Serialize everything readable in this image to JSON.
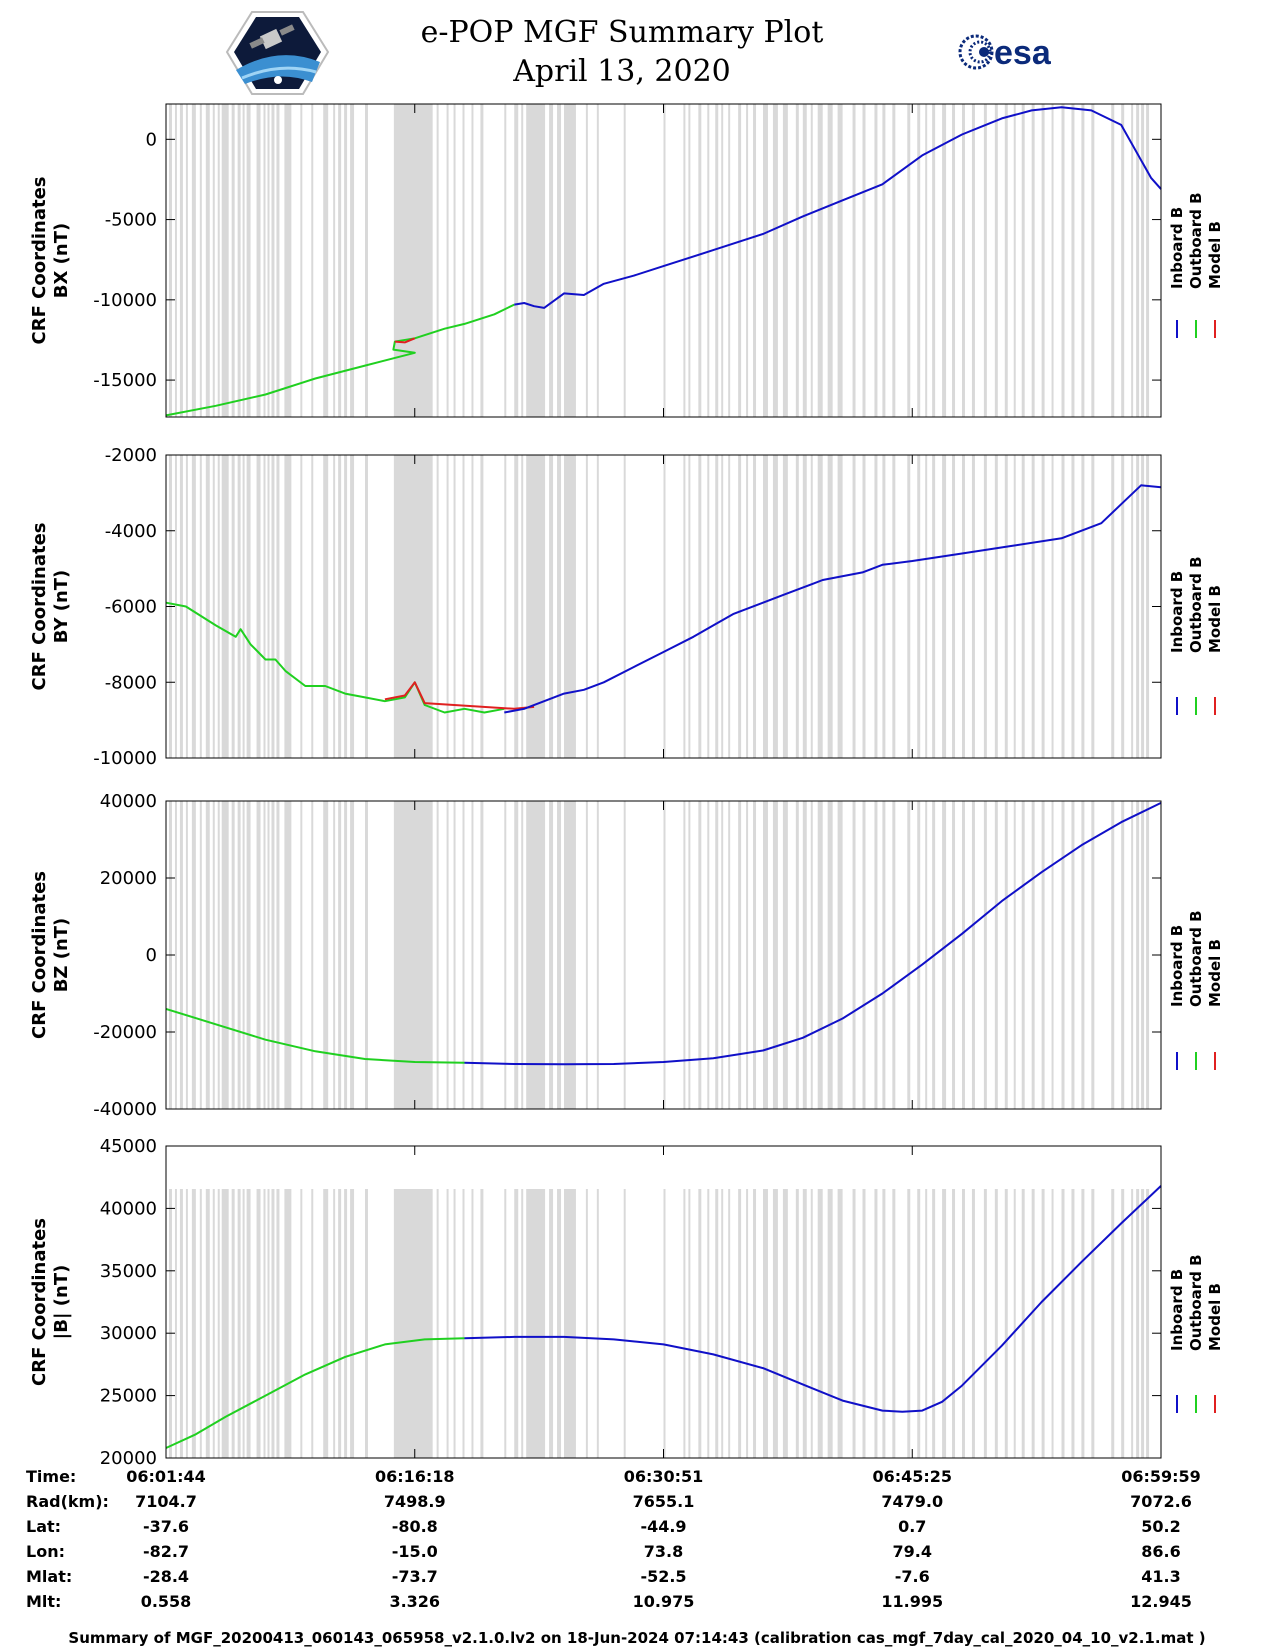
{
  "header": {
    "title_line1": "e-POP MGF Summary Plot",
    "title_line2": "April 13, 2020",
    "esa_logo_text": "esa"
  },
  "colors": {
    "inboard": "#1010c8",
    "outboard": "#20d020",
    "model": "#e02020",
    "shading": "#d9d9d9",
    "esa_blue": "#0b2a7a"
  },
  "chart_data": [
    {
      "type": "line",
      "id": "bx",
      "ylabel_line1": "CRF Coordinates",
      "ylabel_line2": "BX (nT)",
      "ylim": [
        -17300,
        2200
      ],
      "yticks": [
        0,
        -5000,
        -10000,
        -15000
      ],
      "legend": [
        "Inboard B",
        "Outboard B",
        "Model B"
      ],
      "series": [
        {
          "name": "Outboard B",
          "color_key": "outboard",
          "x": [
            0.0,
            0.05,
            0.1,
            0.15,
            0.2,
            0.25,
            0.2285,
            0.23,
            0.25,
            0.28,
            0.3,
            0.33,
            0.35
          ],
          "y": [
            -17200,
            -16600,
            -15900,
            -14900,
            -14100,
            -13300,
            -13100,
            -12600,
            -12400,
            -11800,
            -11500,
            -10900,
            -10300
          ]
        },
        {
          "name": "Model B",
          "color_key": "model",
          "x": [
            0.23,
            0.24,
            0.25
          ],
          "y": [
            -12600,
            -12650,
            -12400
          ]
        },
        {
          "name": "Inboard B",
          "color_key": "inboard",
          "x": [
            0.35,
            0.36,
            0.37,
            0.38,
            0.4,
            0.42,
            0.44,
            0.47,
            0.5,
            0.55,
            0.6,
            0.64,
            0.68,
            0.72,
            0.76,
            0.8,
            0.84,
            0.87,
            0.9,
            0.93,
            0.96,
            0.99,
            1.0
          ],
          "y": [
            -10300,
            -10200,
            -10400,
            -10500,
            -9600,
            -9700,
            -9000,
            -8500,
            -7900,
            -6900,
            -5900,
            -4800,
            -3800,
            -2800,
            -1000,
            300,
            1300,
            1800,
            2000,
            1800,
            900,
            -2400,
            -3100
          ]
        }
      ]
    },
    {
      "type": "line",
      "id": "by",
      "ylabel_line1": "CRF Coordinates",
      "ylabel_line2": "BY (nT)",
      "ylim": [
        -10000,
        -2000
      ],
      "yticks": [
        -2000,
        -4000,
        -6000,
        -8000,
        -10000
      ],
      "legend": [
        "Inboard B",
        "Outboard B",
        "Model B"
      ],
      "series": [
        {
          "name": "Outboard B",
          "color_key": "outboard",
          "x": [
            0.0,
            0.02,
            0.05,
            0.07,
            0.075,
            0.085,
            0.1,
            0.11,
            0.12,
            0.14,
            0.16,
            0.18,
            0.2,
            0.22,
            0.24,
            0.25,
            0.26,
            0.28,
            0.3,
            0.32,
            0.34
          ],
          "y": [
            -5900,
            -6000,
            -6500,
            -6800,
            -6600,
            -7000,
            -7400,
            -7400,
            -7700,
            -8100,
            -8100,
            -8300,
            -8400,
            -8500,
            -8400,
            -8000,
            -8600,
            -8800,
            -8700,
            -8800,
            -8700
          ]
        },
        {
          "name": "Model B",
          "color_key": "model",
          "x": [
            0.22,
            0.24,
            0.25,
            0.26,
            0.35,
            0.37
          ],
          "y": [
            -8450,
            -8350,
            -8000,
            -8550,
            -8700,
            -8650
          ]
        },
        {
          "name": "Inboard B",
          "color_key": "inboard",
          "x": [
            0.34,
            0.36,
            0.38,
            0.4,
            0.42,
            0.44,
            0.47,
            0.5,
            0.53,
            0.55,
            0.57,
            0.6,
            0.62,
            0.64,
            0.65,
            0.66,
            0.7,
            0.72,
            0.75,
            0.8,
            0.85,
            0.9,
            0.94,
            0.96,
            0.98,
            1.0
          ],
          "y": [
            -8800,
            -8700,
            -8500,
            -8300,
            -8200,
            -8000,
            -7600,
            -7200,
            -6800,
            -6500,
            -6200,
            -5900,
            -5700,
            -5500,
            -5400,
            -5300,
            -5100,
            -4900,
            -4800,
            -4600,
            -4400,
            -4200,
            -3800,
            -3300,
            -2800,
            -2850
          ]
        }
      ]
    },
    {
      "type": "line",
      "id": "bz",
      "ylabel_line1": "CRF Coordinates",
      "ylabel_line2": "BZ (nT)",
      "ylim": [
        -40000,
        40000
      ],
      "yticks": [
        40000,
        20000,
        0,
        -20000,
        -40000
      ],
      "legend": [
        "Inboard B",
        "Outboard B",
        "Model B"
      ],
      "series": [
        {
          "name": "Outboard B",
          "color_key": "outboard",
          "x": [
            0.0,
            0.05,
            0.1,
            0.15,
            0.2,
            0.25,
            0.3
          ],
          "y": [
            -14000,
            -18000,
            -22000,
            -25000,
            -27000,
            -27800,
            -28000
          ]
        },
        {
          "name": "Inboard B",
          "color_key": "inboard",
          "x": [
            0.3,
            0.35,
            0.4,
            0.45,
            0.5,
            0.55,
            0.6,
            0.64,
            0.68,
            0.72,
            0.76,
            0.8,
            0.84,
            0.88,
            0.92,
            0.96,
            1.0
          ],
          "y": [
            -28000,
            -28300,
            -28400,
            -28300,
            -27800,
            -26800,
            -24800,
            -21500,
            -16500,
            -10000,
            -2500,
            5500,
            14000,
            21500,
            28500,
            34500,
            39500
          ]
        }
      ]
    },
    {
      "type": "line",
      "id": "bmag",
      "ylabel_line1": "CRF Coordinates",
      "ylabel_line2": "|B| (nT)",
      "ylim": [
        20000,
        45000
      ],
      "yticks": [
        45000,
        40000,
        35000,
        30000,
        25000,
        20000
      ],
      "legend": [
        "Inboard B",
        "Outboard B",
        "Model B"
      ],
      "series": [
        {
          "name": "Outboard B",
          "color_key": "outboard",
          "x": [
            0.0,
            0.03,
            0.06,
            0.1,
            0.14,
            0.18,
            0.22,
            0.26,
            0.3
          ],
          "y": [
            20800,
            21900,
            23300,
            25000,
            26700,
            28100,
            29100,
            29500,
            29600
          ]
        },
        {
          "name": "Inboard B",
          "color_key": "inboard",
          "x": [
            0.3,
            0.35,
            0.4,
            0.45,
            0.5,
            0.55,
            0.6,
            0.64,
            0.68,
            0.72,
            0.74,
            0.76,
            0.78,
            0.8,
            0.84,
            0.88,
            0.92,
            0.96,
            1.0
          ],
          "y": [
            29600,
            29700,
            29700,
            29500,
            29100,
            28300,
            27200,
            25900,
            24600,
            23800,
            23700,
            23800,
            24500,
            25800,
            29000,
            32500,
            35700,
            38800,
            41800
          ]
        }
      ]
    }
  ],
  "shading_intervals": [
    [
      0.003,
      0.006
    ],
    [
      0.009,
      0.011
    ],
    [
      0.014,
      0.017
    ],
    [
      0.02,
      0.022
    ],
    [
      0.026,
      0.03
    ],
    [
      0.034,
      0.036
    ],
    [
      0.04,
      0.044
    ],
    [
      0.047,
      0.049
    ],
    [
      0.052,
      0.054
    ],
    [
      0.056,
      0.063
    ],
    [
      0.066,
      0.069
    ],
    [
      0.072,
      0.075
    ],
    [
      0.077,
      0.079
    ],
    [
      0.081,
      0.085
    ],
    [
      0.091,
      0.095
    ],
    [
      0.098,
      0.1
    ],
    [
      0.102,
      0.104
    ],
    [
      0.106,
      0.109
    ],
    [
      0.111,
      0.114
    ],
    [
      0.119,
      0.126
    ],
    [
      0.135,
      0.137
    ],
    [
      0.146,
      0.148
    ],
    [
      0.158,
      0.163
    ],
    [
      0.168,
      0.17
    ],
    [
      0.173,
      0.176
    ],
    [
      0.179,
      0.182
    ],
    [
      0.185,
      0.189
    ],
    [
      0.2,
      0.203
    ],
    [
      0.229,
      0.268
    ],
    [
      0.272,
      0.274
    ],
    [
      0.282,
      0.284
    ],
    [
      0.289,
      0.291
    ],
    [
      0.298,
      0.3
    ],
    [
      0.307,
      0.309
    ],
    [
      0.316,
      0.319
    ],
    [
      0.34,
      0.342
    ],
    [
      0.35,
      0.354
    ],
    [
      0.357,
      0.359
    ],
    [
      0.362,
      0.381
    ],
    [
      0.385,
      0.389
    ],
    [
      0.393,
      0.397
    ],
    [
      0.4,
      0.412
    ],
    [
      0.422,
      0.424
    ],
    [
      0.433,
      0.435
    ],
    [
      0.46,
      0.462
    ],
    [
      0.5,
      0.502
    ],
    [
      0.52,
      0.522
    ],
    [
      0.525,
      0.527
    ],
    [
      0.535,
      0.538
    ],
    [
      0.544,
      0.546
    ],
    [
      0.552,
      0.555
    ],
    [
      0.558,
      0.56
    ],
    [
      0.565,
      0.567
    ],
    [
      0.575,
      0.578
    ],
    [
      0.583,
      0.585
    ],
    [
      0.59,
      0.593
    ],
    [
      0.6,
      0.605
    ],
    [
      0.61,
      0.615
    ],
    [
      0.62,
      0.625
    ],
    [
      0.633,
      0.636
    ],
    [
      0.64,
      0.644
    ],
    [
      0.648,
      0.65
    ],
    [
      0.655,
      0.66
    ],
    [
      0.665,
      0.67
    ],
    [
      0.675,
      0.68
    ],
    [
      0.69,
      0.693
    ],
    [
      0.7,
      0.703
    ],
    [
      0.712,
      0.715
    ],
    [
      0.72,
      0.723
    ],
    [
      0.73,
      0.733
    ],
    [
      0.745,
      0.748
    ],
    [
      0.755,
      0.758
    ],
    [
      0.763,
      0.765
    ],
    [
      0.77,
      0.773
    ],
    [
      0.78,
      0.784
    ],
    [
      0.79,
      0.793
    ],
    [
      0.8,
      0.803
    ],
    [
      0.81,
      0.813
    ],
    [
      0.822,
      0.825
    ],
    [
      0.833,
      0.836
    ],
    [
      0.843,
      0.846
    ],
    [
      0.852,
      0.854
    ],
    [
      0.86,
      0.863
    ],
    [
      0.87,
      0.873
    ],
    [
      0.88,
      0.883
    ],
    [
      0.89,
      0.892
    ],
    [
      0.9,
      0.903
    ],
    [
      0.91,
      0.913
    ],
    [
      0.92,
      0.923
    ],
    [
      0.93,
      0.933
    ],
    [
      0.95,
      0.953
    ],
    [
      0.96,
      0.963
    ],
    [
      0.97,
      0.972
    ],
    [
      0.975,
      0.978
    ],
    [
      0.98,
      0.983
    ],
    [
      0.985,
      0.988
    ]
  ],
  "x_axis": {
    "tick_positions": [
      0.25,
      0.5,
      0.75
    ]
  },
  "info_table": {
    "rows": [
      {
        "label": "Time:",
        "values": [
          "06:01:44",
          "06:16:18",
          "06:30:51",
          "06:45:25",
          "06:59:59"
        ]
      },
      {
        "label": "Rad(km):",
        "values": [
          "7104.7",
          "7498.9",
          "7655.1",
          "7479.0",
          "7072.6"
        ]
      },
      {
        "label": "Lat:",
        "values": [
          "-37.6",
          "-80.8",
          "-44.9",
          "0.7",
          "50.2"
        ]
      },
      {
        "label": "Lon:",
        "values": [
          "-82.7",
          "-15.0",
          "73.8",
          "79.4",
          "86.6"
        ]
      },
      {
        "label": "Mlat:",
        "values": [
          "-28.4",
          "-73.7",
          "-52.5",
          "-7.6",
          "41.3"
        ]
      },
      {
        "label": "Mlt:",
        "values": [
          "0.558",
          "3.326",
          "10.975",
          "11.995",
          "12.945"
        ]
      }
    ]
  },
  "footer": {
    "text": "Summary of MGF_20200413_060143_065958_v2.1.0.lv2 on 18-Jun-2024 07:14:43 (calibration cas_mgf_7day_cal_2020_04_10_v2.1.mat )"
  }
}
